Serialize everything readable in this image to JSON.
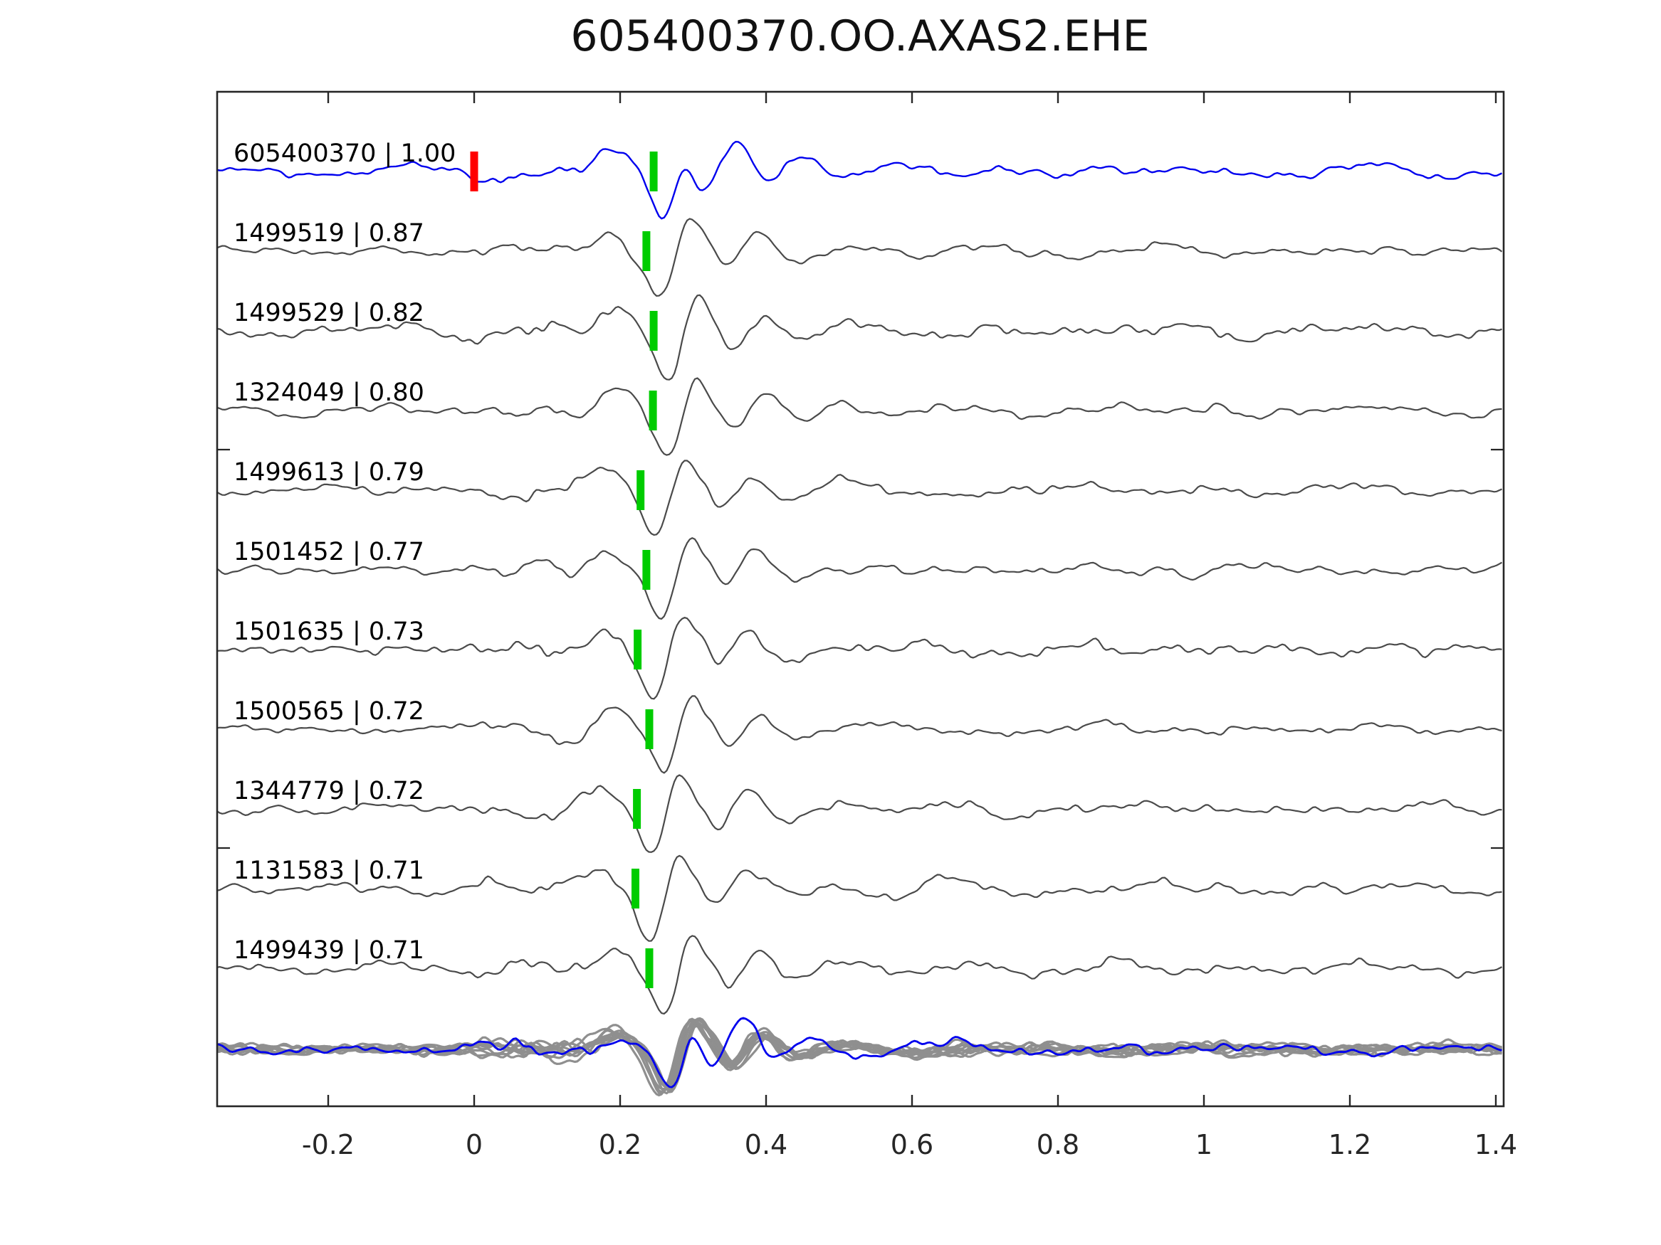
{
  "title": "605400370.OO.AXAS2.EHE",
  "chart_data": {
    "type": "line",
    "subtype": "seismogram-template-match-stack",
    "title": "605400370.OO.AXAS2.EHE",
    "xlabel": "",
    "ylabel": "",
    "x_range": [
      -0.352,
      1.411
    ],
    "grid": false,
    "legend": "none",
    "x_ticks": [
      -0.2,
      0,
      0.2,
      0.4,
      0.6,
      0.8,
      1,
      1.2,
      1.4
    ],
    "x_tick_labels": [
      "-0.2",
      "0",
      "0.2",
      "0.4",
      "0.6",
      "0.8",
      "1",
      "1.2",
      "1.4"
    ],
    "colors": {
      "template_trace": "#0000ee",
      "match_trace": "#4a4a4a",
      "overlay_gray": "#8f8f8f",
      "pick_marker": "#00cc00",
      "template_origin_marker": "#ff0000",
      "axis": "#262626",
      "text": "#000000"
    },
    "traces": [
      {
        "id": "605400370",
        "cc": "1.00",
        "label": "605400370 | 1.00",
        "kind": "template",
        "pick_time": 0.246,
        "origin_marker_time": 0.0,
        "seed": 11
      },
      {
        "id": "1499519",
        "cc": "0.87",
        "label": "1499519 | 0.87",
        "kind": "match",
        "pick_time": 0.236,
        "seed": 22
      },
      {
        "id": "1499529",
        "cc": "0.82",
        "label": "1499529 | 0.82",
        "kind": "match",
        "pick_time": 0.246,
        "seed": 33
      },
      {
        "id": "1324049",
        "cc": "0.80",
        "label": "1324049 | 0.80",
        "kind": "match",
        "pick_time": 0.245,
        "seed": 47
      },
      {
        "id": "1499613",
        "cc": "0.79",
        "label": "1499613 | 0.79",
        "kind": "match",
        "pick_time": 0.228,
        "seed": 55
      },
      {
        "id": "1501452",
        "cc": "0.77",
        "label": "1501452 | 0.77",
        "kind": "match",
        "pick_time": 0.236,
        "seed": 66
      },
      {
        "id": "1501635",
        "cc": "0.73",
        "label": "1501635 | 0.73",
        "kind": "match",
        "pick_time": 0.224,
        "seed": 78
      },
      {
        "id": "1500565",
        "cc": "0.72",
        "label": "1500565 | 0.72",
        "kind": "match",
        "pick_time": 0.24,
        "seed": 88
      },
      {
        "id": "1344779",
        "cc": "0.72",
        "label": "1344779 | 0.72",
        "kind": "match",
        "pick_time": 0.223,
        "seed": 99
      },
      {
        "id": "1131583",
        "cc": "0.71",
        "label": "1131583 | 0.71",
        "kind": "match",
        "pick_time": 0.221,
        "seed": 111
      },
      {
        "id": "1499439",
        "cc": "0.71",
        "label": "1499439 | 0.71",
        "kind": "match",
        "pick_time": 0.24,
        "seed": 123
      }
    ],
    "overlay_row": {
      "description": "all match traces overlaid in gray with template trace overlaid in blue",
      "gray_trace_count": 10,
      "blue_pick_time": 0.258
    }
  }
}
